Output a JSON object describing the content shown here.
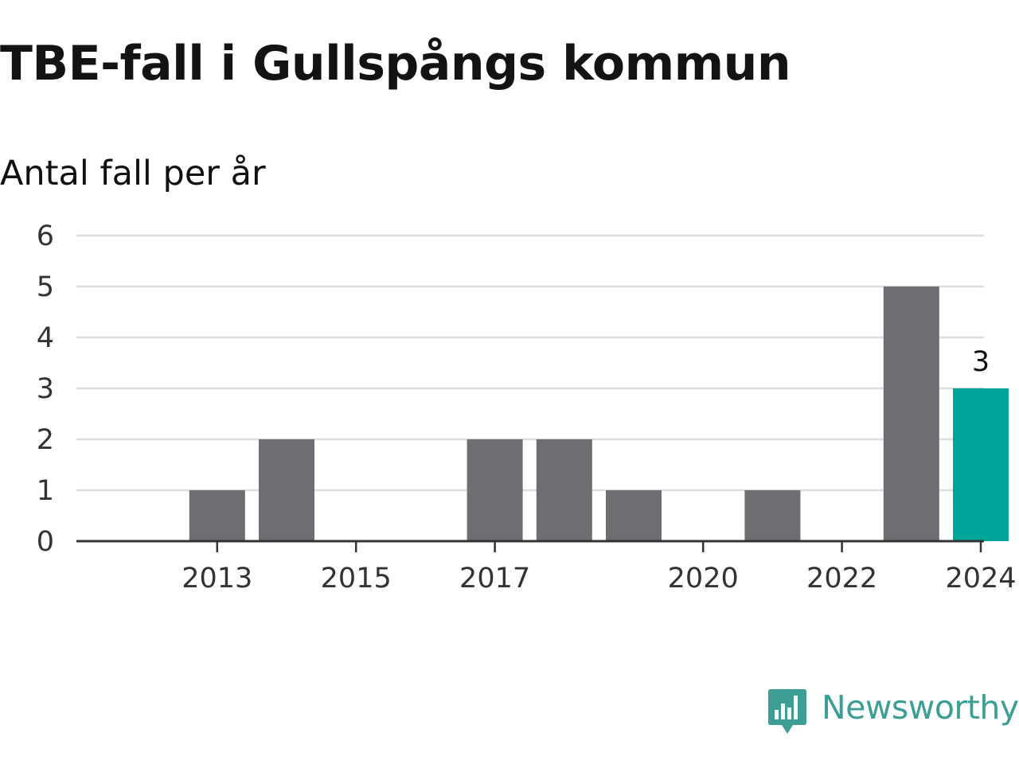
{
  "chart_data": {
    "type": "bar",
    "title": "TBE-fall i Gullspångs kommun",
    "subtitle": "Antal fall per år",
    "xlabel": "",
    "ylabel": "",
    "categories": [
      "2012",
      "2013",
      "2014",
      "2015",
      "2016",
      "2017",
      "2018",
      "2019",
      "2020",
      "2021",
      "2022",
      "2023",
      "2024"
    ],
    "values": [
      0,
      1,
      2,
      0,
      0,
      2,
      2,
      1,
      0,
      1,
      0,
      5,
      3
    ],
    "x_tick_labels": [
      "2013",
      "2015",
      "2017",
      "2020",
      "2022",
      "2024"
    ],
    "y_ticks": [
      "0",
      "1",
      "2",
      "3",
      "4",
      "5",
      "6"
    ],
    "ylim": [
      0,
      6
    ],
    "grid": true,
    "highlight_category": "2024",
    "data_labels": [
      {
        "category": "2024",
        "text": "3"
      }
    ],
    "colors": {
      "bar": "#6e6d72",
      "highlight": "#00a59a",
      "grid": "#dddddd",
      "axis": "#333333"
    }
  },
  "branding": {
    "logo_text": "Newsworthy",
    "logo_icon": "newsworthy-logo-icon",
    "color": "#3d9e95"
  }
}
